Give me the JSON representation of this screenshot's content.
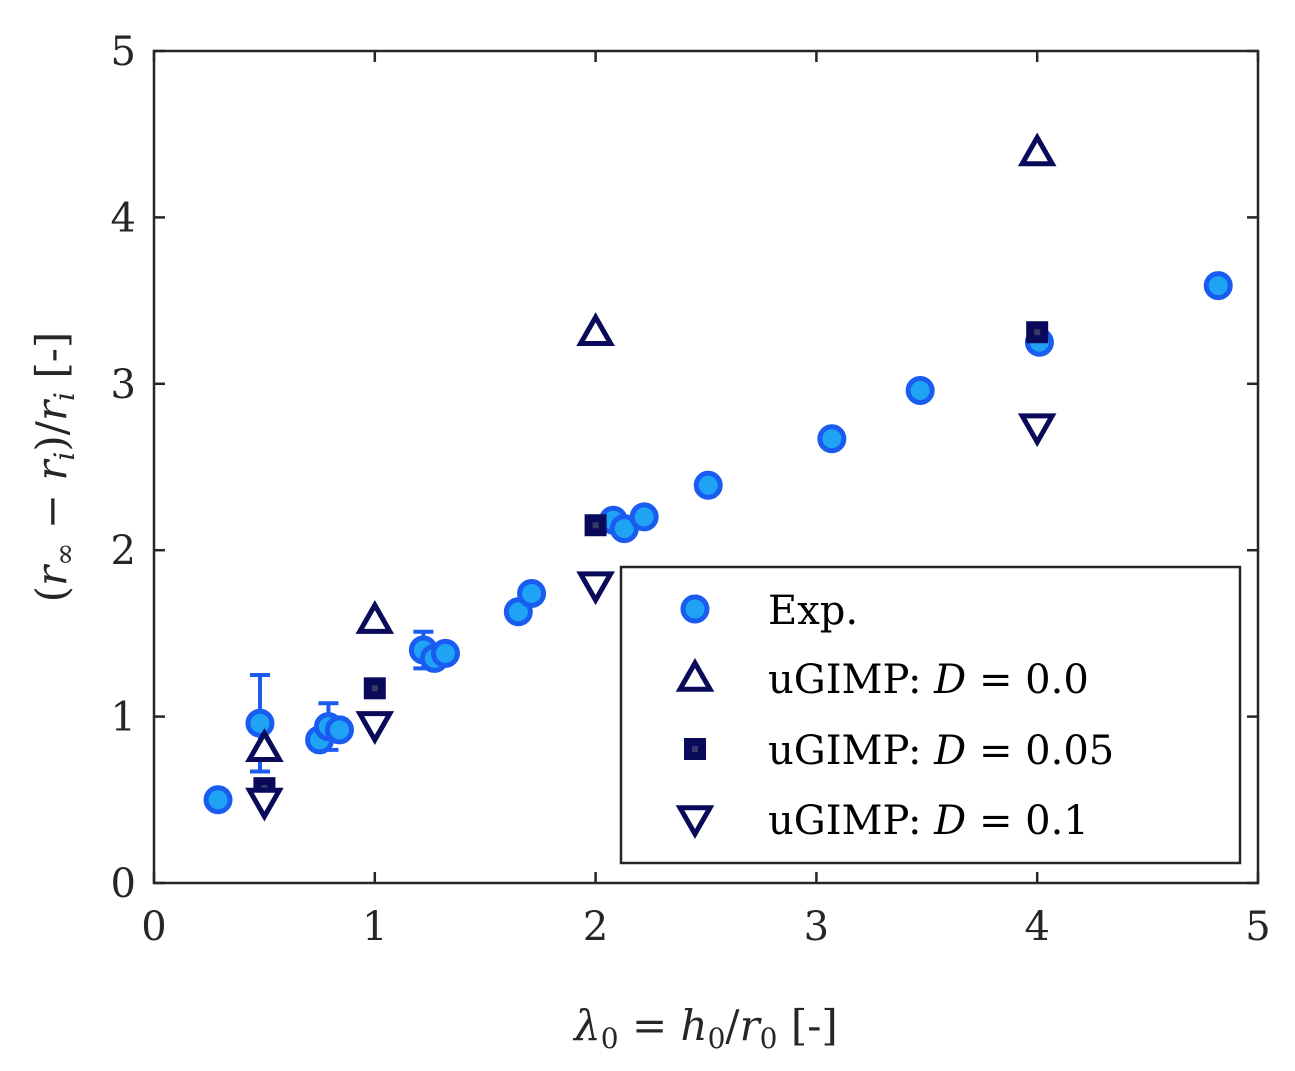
{
  "chart_data": {
    "type": "scatter",
    "title": "",
    "xlabel": {
      "lambda": "λ",
      "sub0": "0",
      "eq": " = ",
      "h": "h",
      "h_sub": "0",
      "slash": "/",
      "r": "r",
      "r_sub": "0",
      "unit": " [-]"
    },
    "ylabel": {
      "open": "(",
      "r_inf": "r",
      "inf_sub": "∞",
      "minus": " − ",
      "r_i": "r",
      "i_sub": "i",
      "close": ")/",
      "r_i2": "r",
      "i_sub2": "i",
      "unit": " [-]"
    },
    "xlim": [
      0,
      5
    ],
    "ylim": [
      0,
      5
    ],
    "xticks": [
      "0",
      "1",
      "2",
      "3",
      "4",
      "5"
    ],
    "yticks": [
      "0",
      "1",
      "2",
      "3",
      "4",
      "5"
    ],
    "grid": false,
    "legend_position": "bottom-right",
    "series": [
      {
        "name": "Exp.",
        "marker": "circle",
        "color": "#1a5cf0",
        "fill": "#1ea3f5",
        "points": [
          {
            "x": 0.29,
            "y": 0.5,
            "err": 0.0
          },
          {
            "x": 0.48,
            "y": 0.96,
            "err": 0.29
          },
          {
            "x": 0.75,
            "y": 0.86,
            "err": 0.05
          },
          {
            "x": 0.79,
            "y": 0.94,
            "err": 0.14
          },
          {
            "x": 0.84,
            "y": 0.92,
            "err": 0.04
          },
          {
            "x": 1.22,
            "y": 1.4,
            "err": 0.11
          },
          {
            "x": 1.27,
            "y": 1.35,
            "err": 0.03
          },
          {
            "x": 1.32,
            "y": 1.38,
            "err": 0.02
          },
          {
            "x": 1.65,
            "y": 1.63,
            "err": 0.0
          },
          {
            "x": 1.71,
            "y": 1.74,
            "err": 0.0
          },
          {
            "x": 2.08,
            "y": 2.18,
            "err": 0.02
          },
          {
            "x": 2.13,
            "y": 2.13,
            "err": 0.0
          },
          {
            "x": 2.22,
            "y": 2.2,
            "err": 0.04
          },
          {
            "x": 2.51,
            "y": 2.39,
            "err": 0.0
          },
          {
            "x": 3.07,
            "y": 2.67,
            "err": 0.0
          },
          {
            "x": 3.47,
            "y": 2.96,
            "err": 0.0
          },
          {
            "x": 4.01,
            "y": 3.25,
            "err": 0.0
          },
          {
            "x": 4.82,
            "y": 3.59,
            "err": 0.0
          }
        ]
      },
      {
        "name": "uGIMP: D = 0.0",
        "label_prefix": "uGIMP: ",
        "label_var": "D",
        "label_eq": " = 0.0",
        "marker": "triangle-up",
        "color": "#0a0a5a",
        "points": [
          {
            "x": 0.5,
            "y": 0.81
          },
          {
            "x": 1.0,
            "y": 1.58
          },
          {
            "x": 2.0,
            "y": 3.31
          },
          {
            "x": 4.0,
            "y": 4.39
          }
        ]
      },
      {
        "name": "uGIMP: D = 0.05",
        "label_prefix": "uGIMP: ",
        "label_var": "D",
        "label_eq": " = 0.05",
        "marker": "square",
        "color": "#0a0a5a",
        "points": [
          {
            "x": 0.5,
            "y": 0.57
          },
          {
            "x": 1.0,
            "y": 1.17
          },
          {
            "x": 2.0,
            "y": 2.15
          },
          {
            "x": 4.0,
            "y": 3.31
          }
        ]
      },
      {
        "name": "uGIMP: D = 0.1",
        "label_prefix": "uGIMP: ",
        "label_var": "D",
        "label_eq": " = 0.1",
        "marker": "triangle-down",
        "color": "#0a0a5a",
        "points": [
          {
            "x": 0.5,
            "y": 0.49
          },
          {
            "x": 1.0,
            "y": 0.95
          },
          {
            "x": 2.0,
            "y": 1.79
          },
          {
            "x": 4.0,
            "y": 2.74
          }
        ]
      }
    ]
  }
}
